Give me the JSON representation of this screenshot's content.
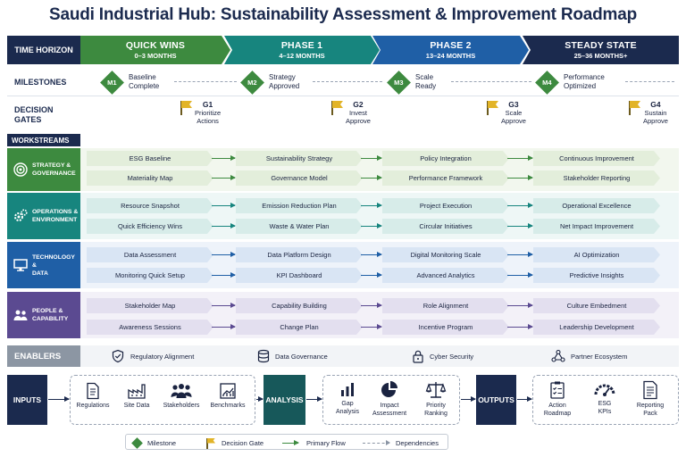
{
  "title": "Saudi Industrial Hub: Sustainability Assessment & Improvement Roadmap",
  "colors": {
    "navy": "#1b2a4e",
    "green": "#3d8a3f",
    "teal": "#17857e",
    "blue": "#1f5fa6",
    "purple": "#5b4a91",
    "gold": "#e2b428"
  },
  "time_horizon_label": "TIME HORIZON",
  "phases": [
    {
      "name": "QUICK WINS",
      "duration": "0–3 MONTHS",
      "color": "#3d8a3f"
    },
    {
      "name": "PHASE 1",
      "duration": "4–12 MONTHS",
      "color": "#17857e"
    },
    {
      "name": "PHASE 2",
      "duration": "13–24 MONTHS",
      "color": "#1f5fa6"
    },
    {
      "name": "STEADY STATE",
      "duration": "25–36 MONTHS+",
      "color": "#1b2a4e"
    }
  ],
  "milestones_label": "MILESTONES",
  "milestones": [
    {
      "code": "M1",
      "line1": "Baseline",
      "line2": "Complete"
    },
    {
      "code": "M2",
      "line1": "Strategy",
      "line2": "Approved"
    },
    {
      "code": "M3",
      "line1": "Scale",
      "line2": "Ready"
    },
    {
      "code": "M4",
      "line1": "Performance",
      "line2": "Optimized"
    }
  ],
  "gates_label_1": "DECISION",
  "gates_label_2": "GATES",
  "gates": [
    {
      "code": "G1",
      "line1": "Prioritize",
      "line2": "Actions"
    },
    {
      "code": "G2",
      "line1": "Invest",
      "line2": "Approve"
    },
    {
      "code": "G3",
      "line1": "Scale",
      "line2": "Approve"
    },
    {
      "code": "G4",
      "line1": "Sustain",
      "line2": "Approve"
    }
  ],
  "workstreams_label": "WORKSTREAMS",
  "workstreams": [
    {
      "line1": "STRATEGY &",
      "line2": "GOVERNANCE",
      "icon": "target-icon",
      "color": "#3d8a3f",
      "band": "#f2f7ee",
      "card": "#e3eedb",
      "arrow": "#3d8a3f",
      "rows": [
        [
          "ESG Baseline",
          "Sustainability Strategy",
          "Policy Integration",
          "Continuous Improvement"
        ],
        [
          "Materiality Map",
          "Governance Model",
          "Performance Framework",
          "Stakeholder Reporting"
        ]
      ]
    },
    {
      "line1": "OPERATIONS &",
      "line2": "ENVIRONMENT",
      "icon": "gears-icon",
      "color": "#17857e",
      "band": "#eef7f6",
      "card": "#d7ece9",
      "arrow": "#17857e",
      "rows": [
        [
          "Resource Snapshot",
          "Emission Reduction Plan",
          "Project Execution",
          "Operational Excellence"
        ],
        [
          "Quick Efficiency Wins",
          "Waste & Water Plan",
          "Circular Initiatives",
          "Net Impact Improvement"
        ]
      ]
    },
    {
      "line1": "TECHNOLOGY &",
      "line2": "DATA",
      "icon": "monitor-icon",
      "color": "#1f5fa6",
      "band": "#eef3fa",
      "card": "#d9e5f4",
      "arrow": "#1f5fa6",
      "rows": [
        [
          "Data Assessment",
          "Data Platform Design",
          "Digital Monitoring Scale",
          "AI Optimization"
        ],
        [
          "Monitoring Quick Setup",
          "KPI Dashboard",
          "Advanced Analytics",
          "Predictive Insights"
        ]
      ]
    },
    {
      "line1": "PEOPLE &",
      "line2": "CAPABILITY",
      "icon": "people-icon",
      "color": "#5b4a91",
      "band": "#f3f1f8",
      "card": "#e3dfef",
      "arrow": "#5b4a91",
      "rows": [
        [
          "Stakeholder Map",
          "Capability Building",
          "Role Alignment",
          "Culture Embedment"
        ],
        [
          "Awareness Sessions",
          "Change Plan",
          "Incentive Program",
          "Leadership Development"
        ]
      ]
    }
  ],
  "enablers_label": "ENABLERS",
  "enablers": [
    {
      "label": "Regulatory Alignment",
      "icon": "shield-check-icon"
    },
    {
      "label": "Data Governance",
      "icon": "database-icon"
    },
    {
      "label": "Cyber Security",
      "icon": "lock-icon"
    },
    {
      "label": "Partner Ecosystem",
      "icon": "network-icon"
    }
  ],
  "flow": {
    "inputs_label": "INPUTS",
    "inputs": [
      {
        "label": "Regulations",
        "icon": "document-icon"
      },
      {
        "label": "Site Data",
        "icon": "factory-icon"
      },
      {
        "label": "Stakeholders",
        "icon": "group-icon"
      },
      {
        "label": "Benchmarks",
        "icon": "chart-icon"
      }
    ],
    "analysis_label": "ANALYSIS",
    "analysis": [
      {
        "line1": "Gap",
        "line2": "Analysis",
        "icon": "bar-chart-icon"
      },
      {
        "line1": "Impact",
        "line2": "Assessment",
        "icon": "pie-chart-icon"
      },
      {
        "line1": "Priority",
        "line2": "Ranking",
        "icon": "scales-icon"
      }
    ],
    "outputs_label": "OUTPUTS",
    "outputs": [
      {
        "line1": "Action",
        "line2": "Roadmap",
        "icon": "checklist-icon"
      },
      {
        "line1": "ESG",
        "line2": "KPIs",
        "icon": "gauge-icon"
      },
      {
        "line1": "Reporting",
        "line2": "Pack",
        "icon": "report-icon"
      }
    ]
  },
  "legend": {
    "milestone": "Milestone",
    "gate": "Decision Gate",
    "flow": "Primary Flow",
    "deps": "Dependencies"
  }
}
